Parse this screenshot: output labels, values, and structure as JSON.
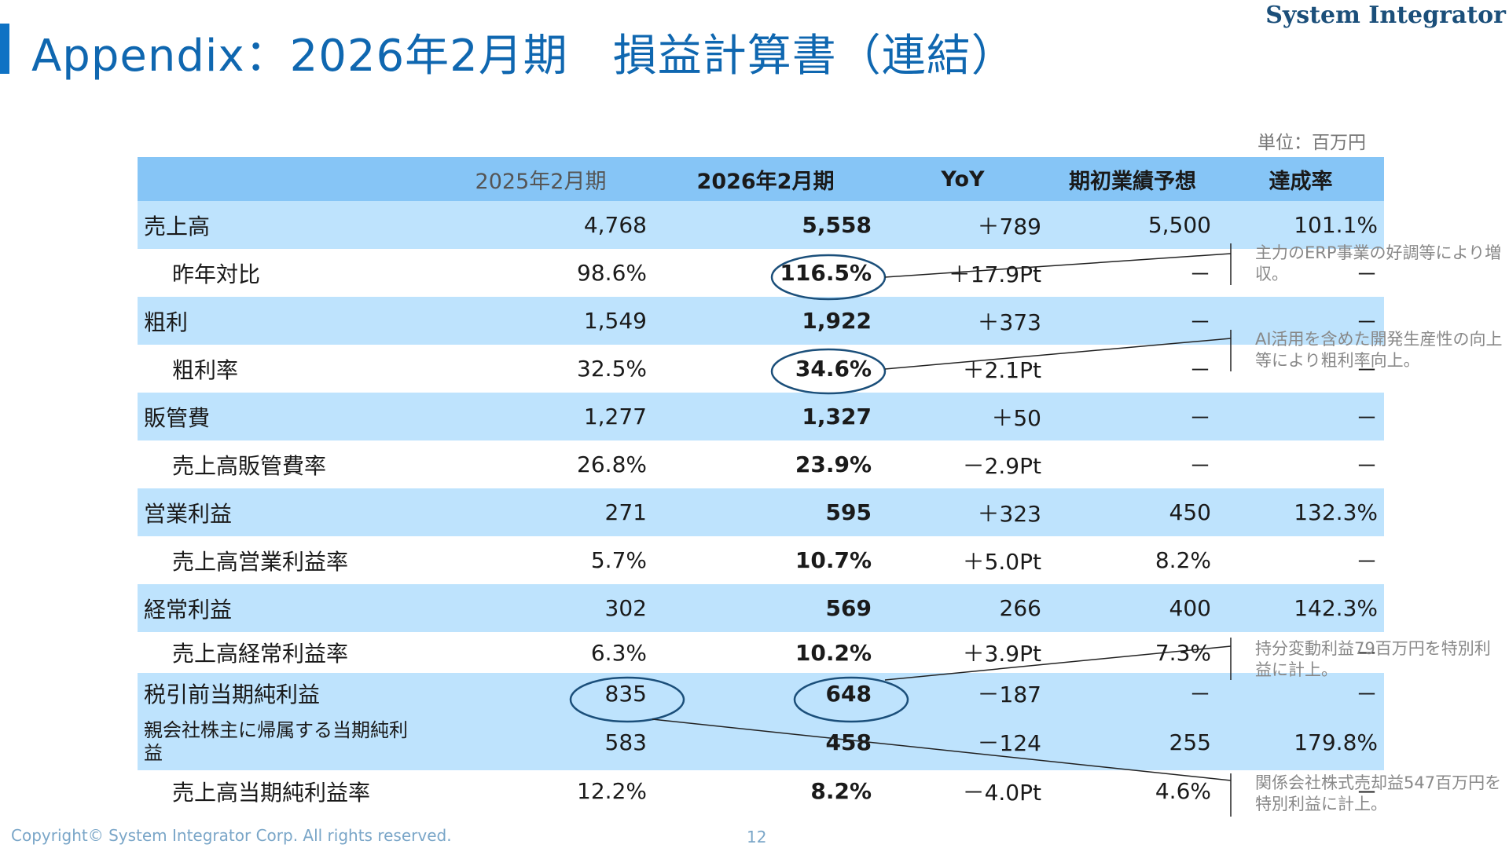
{
  "brand": "System Integrator",
  "title": "Appendix：2026年2月期　損益計算書（連結）",
  "unit": "単位：百万円",
  "table": {
    "headers": [
      "",
      "2025年2月期",
      "2026年2月期",
      "YoY",
      "期初業績予想",
      "達成率"
    ],
    "rows": [
      {
        "label": "売上高",
        "prev": "4,768",
        "cur": "5,558",
        "yoy": "＋789",
        "forecast": "5,500",
        "rate": "101.1%"
      },
      {
        "label": "昨年対比",
        "prev": "98.6%",
        "cur": "116.5%",
        "yoy": "＋17.9Pt",
        "forecast": "－",
        "rate": "－"
      },
      {
        "label": "粗利",
        "prev": "1,549",
        "cur": "1,922",
        "yoy": "＋373",
        "forecast": "－",
        "rate": "－"
      },
      {
        "label": "粗利率",
        "prev": "32.5%",
        "cur": "34.6%",
        "yoy": "＋2.1Pt",
        "forecast": "－",
        "rate": "－"
      },
      {
        "label": "販管費",
        "prev": "1,277",
        "cur": "1,327",
        "yoy": "＋50",
        "forecast": "－",
        "rate": "－"
      },
      {
        "label": "売上高販管費率",
        "prev": "26.8%",
        "cur": "23.9%",
        "yoy": "－2.9Pt",
        "forecast": "－",
        "rate": "－"
      },
      {
        "label": "営業利益",
        "prev": "271",
        "cur": "595",
        "yoy": "＋323",
        "forecast": "450",
        "rate": "132.3%"
      },
      {
        "label": "売上高営業利益率",
        "prev": "5.7%",
        "cur": "10.7%",
        "yoy": "＋5.0Pt",
        "forecast": "8.2%",
        "rate": "－"
      },
      {
        "label": "経常利益",
        "prev": "302",
        "cur": "569",
        "yoy": "266",
        "forecast": "400",
        "rate": "142.3%"
      },
      {
        "label": "売上高経常利益率",
        "prev": "6.3%",
        "cur": "10.2%",
        "yoy": "＋3.9Pt",
        "forecast": "7.3%",
        "rate": "－"
      },
      {
        "label": "税引前当期純利益",
        "prev": "835",
        "cur": "648",
        "yoy": "－187",
        "forecast": "－",
        "rate": "－"
      },
      {
        "label": "親会社株主に帰属する当期純利益",
        "prev": "583",
        "cur": "458",
        "yoy": "－124",
        "forecast": "255",
        "rate": "179.8%"
      },
      {
        "label": "売上高当期純利益率",
        "prev": "12.2%",
        "cur": "8.2%",
        "yoy": "－4.0Pt",
        "forecast": "4.6%",
        "rate": "－"
      }
    ]
  },
  "notes": {
    "sales": "主力のERP事業の好調等により増収。",
    "gross": "AI活用を含めた開発生産性の向上等により粗利率向上。",
    "pretax": "持分変動利益79百万円を特別利益に計上。",
    "sale_gain": "関係会社株式売却益547百万円を特別利益に計上。"
  },
  "footer": {
    "copyright": "Copyright© System Integrator Corp. All rights reserved.",
    "page": "12"
  },
  "colors": {
    "header_bg": "#86c5f6",
    "row_bg": "#bee3fd",
    "title": "#0f67b0",
    "circle": "#1b4f7a"
  }
}
